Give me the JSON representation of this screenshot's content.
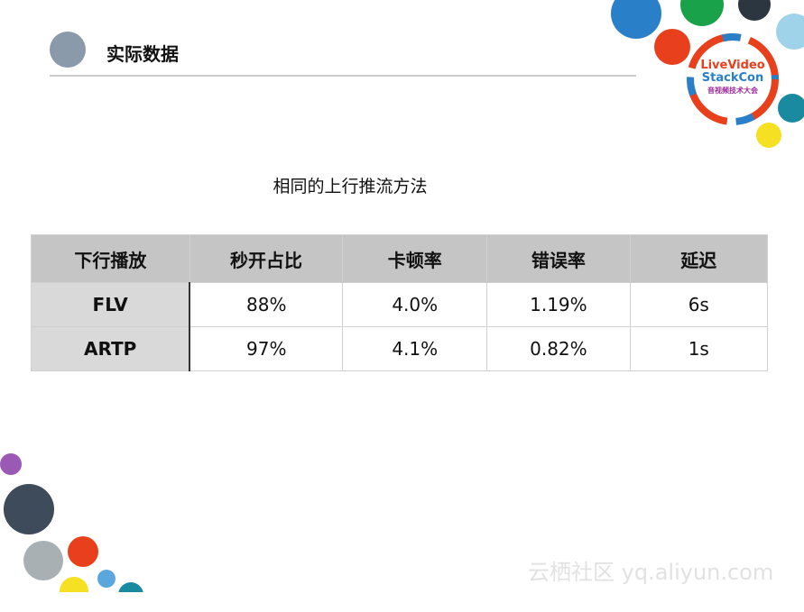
{
  "header": {
    "title": "实际数据"
  },
  "subtitle": "相同的上行推流方法",
  "table": {
    "columns": [
      "下行播放",
      "秒开占比",
      "卡顿率",
      "错误率",
      "延迟"
    ],
    "rows": [
      [
        "FLV",
        "88%",
        "4.0%",
        "1.19%",
        "6s"
      ],
      [
        "ARTP",
        "97%",
        "4.1%",
        "0.82%",
        "1s"
      ]
    ]
  },
  "logo": {
    "line1": "LiveVideo",
    "line2": "StackCon",
    "line3": "音视频技术大会"
  },
  "watermark": "云栖社区 yq.aliyun.com"
}
